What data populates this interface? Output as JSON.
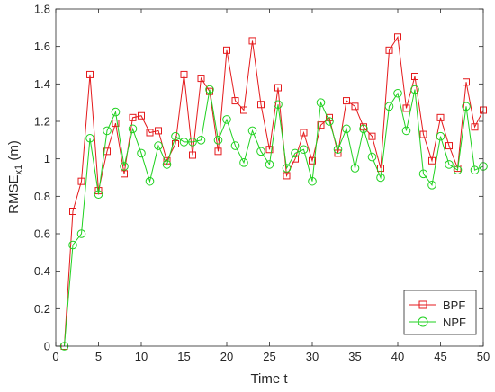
{
  "chart_data": {
    "type": "line",
    "xlabel": "Time t",
    "ylabel_main": "RMSE",
    "ylabel_sub": "x1",
    "ylabel_unit": " (m)",
    "xlim": [
      0,
      50
    ],
    "ylim": [
      0,
      1.8
    ],
    "xticks": [
      0,
      5,
      10,
      15,
      20,
      25,
      30,
      35,
      40,
      45,
      50
    ],
    "yticks": [
      0,
      0.2,
      0.4,
      0.6,
      0.8,
      1,
      1.2,
      1.4,
      1.6,
      1.8
    ],
    "grid": false,
    "legend_position": "bottom-right",
    "x": [
      1,
      2,
      3,
      4,
      5,
      6,
      7,
      8,
      9,
      10,
      11,
      12,
      13,
      14,
      15,
      16,
      17,
      18,
      19,
      20,
      21,
      22,
      23,
      24,
      25,
      26,
      27,
      28,
      29,
      30,
      31,
      32,
      33,
      34,
      35,
      36,
      37,
      38,
      39,
      40,
      41,
      42,
      43,
      44,
      45,
      46,
      47,
      48,
      49,
      50
    ],
    "series": [
      {
        "name": "BPF",
        "color": "#e41a1c",
        "marker": "square",
        "values": [
          0,
          0.72,
          0.88,
          1.45,
          0.83,
          1.04,
          1.19,
          0.92,
          1.22,
          1.23,
          1.14,
          1.15,
          0.99,
          1.08,
          1.45,
          1.02,
          1.43,
          1.36,
          1.04,
          1.58,
          1.31,
          1.26,
          1.63,
          1.29,
          1.05,
          1.38,
          0.91,
          1.0,
          1.14,
          0.99,
          1.18,
          1.22,
          1.03,
          1.31,
          1.28,
          1.17,
          1.12,
          0.95,
          1.58,
          1.65,
          1.27,
          1.44,
          1.13,
          0.99,
          1.22,
          1.07,
          0.95,
          1.41,
          1.17,
          1.26
        ]
      },
      {
        "name": "NPF",
        "color": "#1fd11f",
        "marker": "circle",
        "values": [
          0,
          0.54,
          0.6,
          1.11,
          0.81,
          1.15,
          1.25,
          0.96,
          1.16,
          1.03,
          0.88,
          1.07,
          0.97,
          1.12,
          1.09,
          1.09,
          1.1,
          1.37,
          1.1,
          1.21,
          1.07,
          0.98,
          1.15,
          1.04,
          0.97,
          1.29,
          0.95,
          1.03,
          1.05,
          0.88,
          1.3,
          1.2,
          1.05,
          1.16,
          0.95,
          1.16,
          1.01,
          0.9,
          1.28,
          1.35,
          1.15,
          1.37,
          0.92,
          0.86,
          1.12,
          0.97,
          0.94,
          1.28,
          0.94,
          0.96
        ]
      }
    ]
  }
}
